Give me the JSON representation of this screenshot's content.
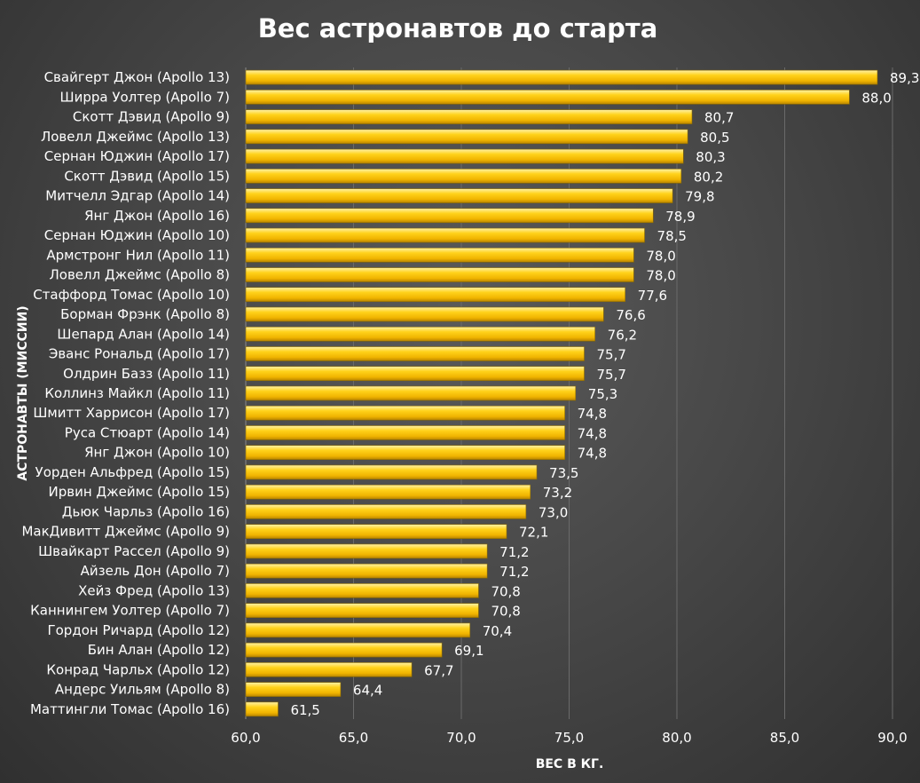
{
  "chart_data": {
    "type": "bar",
    "orientation": "horizontal",
    "title": "Вес астронавтов до старта",
    "xlabel": "ВЕС В КГ.",
    "ylabel": "АСТРОНАВТЫ (МИССИИ)",
    "xlim": [
      60,
      90
    ],
    "ticks": [
      "60,0",
      "65,0",
      "70,0",
      "75,0",
      "80,0",
      "85,0",
      "90,0"
    ],
    "tick_values": [
      60,
      65,
      70,
      75,
      80,
      85,
      90
    ],
    "bar_color": "#f5bf00",
    "grid": true,
    "categories": [
      "Свайгерт Джон (Apollo 13)",
      "Ширра Уолтер (Apollo 7)",
      "Скотт Дэвид (Apollo 9)",
      "Ловелл Джеймс (Apollo 13)",
      "Сернан Юджин (Apollo 17)",
      "Скотт Дэвид (Apollo 15)",
      "Митчелл Эдгар (Apollo 14)",
      "Янг Джон (Apollo 16)",
      "Сернан Юджин (Apollo 10)",
      "Армстронг Нил (Apollo 11)",
      "Ловелл Джеймс (Apollo 8)",
      "Стаффорд Томас (Apollo 10)",
      "Борман Фрэнк (Apollo 8)",
      "Шепард Алан (Apollo 14)",
      "Эванс Рональд (Apollo 17)",
      "Олдрин Базз (Apollo 11)",
      "Коллинз Майкл (Apollo 11)",
      "Шмитт Харрисон (Apollo 17)",
      "Руса Стюарт (Apollo 14)",
      "Янг Джон (Apollo 10)",
      "Уорден Альфред (Apollo 15)",
      "Ирвин Джеймс (Apollo 15)",
      "Дьюк Чарльз  (Apollo 16)",
      "МакДивитт Джеймс (Apollo 9)",
      "Швайкарт Рассел (Apollo 9)",
      "Айзель Дон (Apollo 7)",
      "Хейз Фред (Apollo 13)",
      "Каннингем Уолтер (Apollo 7)",
      "Гордон Ричард (Apollo 12)",
      "Бин Алан (Apollo 12)",
      "Конрад Чарльх (Apollo 12)",
      "Андерс Уильям (Apollo 8)",
      "Маттингли Томас  (Apollo 16)"
    ],
    "values": [
      89.3,
      88.0,
      80.7,
      80.5,
      80.3,
      80.2,
      79.8,
      78.9,
      78.5,
      78.0,
      78.0,
      77.6,
      76.6,
      76.2,
      75.7,
      75.7,
      75.3,
      74.8,
      74.8,
      74.8,
      73.5,
      73.2,
      73.0,
      72.1,
      71.2,
      71.2,
      70.8,
      70.8,
      70.4,
      69.1,
      67.7,
      64.4,
      61.5
    ],
    "value_labels": [
      "89,3",
      "88,0",
      "80,7",
      "80,5",
      "80,3",
      "80,2",
      "79,8",
      "78,9",
      "78,5",
      "78,0",
      "78,0",
      "77,6",
      "76,6",
      "76,2",
      "75,7",
      "75,7",
      "75,3",
      "74,8",
      "74,8",
      "74,8",
      "73,5",
      "73,2",
      "73,0",
      "72,1",
      "71,2",
      "71,2",
      "70,8",
      "70,8",
      "70,4",
      "69,1",
      "67,7",
      "64,4",
      "61,5"
    ]
  }
}
